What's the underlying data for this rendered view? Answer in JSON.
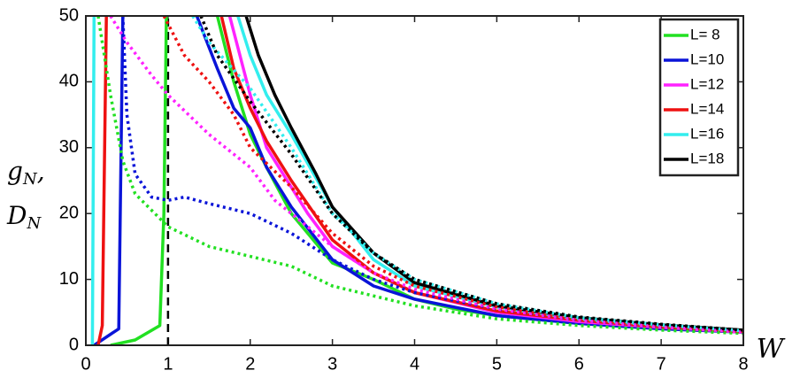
{
  "chart_data": {
    "type": "line",
    "ylabel": [
      [
        "g",
        "N",
        ","
      ],
      [
        "D",
        "N"
      ]
    ],
    "xlabel": "W",
    "xlim": [
      0,
      8
    ],
    "xticks": [
      0,
      1,
      2,
      3,
      4,
      5,
      6,
      7,
      8
    ],
    "ylim": [
      0,
      50
    ],
    "yticks": [
      0,
      10,
      20,
      30,
      40,
      50
    ],
    "legend": "upper right",
    "reference_x": 1,
    "series": [
      {
        "name": "L= 8",
        "color": "#22e022",
        "style": "solid",
        "x": [
          0.3,
          0.6,
          0.9,
          0.95,
          0.98,
          1.3,
          1.6,
          1.8,
          2,
          2.2,
          2.5,
          3,
          3.5,
          4,
          4.5,
          5,
          6,
          7,
          8
        ],
        "values": [
          0,
          0.8,
          3,
          20,
          50,
          null,
          50,
          40,
          32,
          27,
          20,
          12.5,
          10,
          7,
          5.5,
          4.5,
          3.3,
          2.5,
          2
        ]
      },
      {
        "name": "L=10",
        "color": "#0a14d8",
        "style": "solid",
        "x": [
          0.1,
          0.4,
          0.45,
          0.9,
          1.35,
          1.6,
          1.8,
          2,
          2.2,
          2.5,
          3,
          3.5,
          4,
          5,
          6,
          7,
          8
        ],
        "values": [
          0,
          2.5,
          50,
          null,
          50,
          42,
          36,
          33,
          27,
          21,
          13,
          9,
          7,
          4.5,
          3.3,
          2.5,
          2
        ]
      },
      {
        "name": "L=12",
        "color": "#ff22ff",
        "style": "solid",
        "x": [
          1.75,
          2,
          2.2,
          2.5,
          2.7,
          3,
          3.5,
          4,
          5,
          6,
          7,
          8
        ],
        "values": [
          50,
          38,
          30,
          24,
          20,
          15,
          11,
          8,
          5,
          3.6,
          2.7,
          2
        ]
      },
      {
        "name": "L=14",
        "color": "#ee1111",
        "style": "solid",
        "x": [
          0.15,
          0.2,
          0.25,
          1,
          1.65,
          1.8,
          2,
          2.2,
          2.5,
          3,
          3.5,
          4,
          5,
          6,
          7,
          8
        ],
        "values": [
          0,
          3,
          50,
          null,
          50,
          42,
          36,
          31,
          25,
          16,
          11,
          8,
          5.2,
          3.8,
          2.8,
          2
        ]
      },
      {
        "name": "L=16",
        "color": "#33eeee",
        "style": "solid",
        "x": [
          0.08,
          0.1,
          1,
          1.85,
          2,
          2.2,
          2.5,
          3,
          3.5,
          4,
          5,
          6,
          7,
          8
        ],
        "values": [
          0,
          50,
          null,
          50,
          44,
          38,
          32,
          21,
          13,
          9,
          5.8,
          4,
          3,
          2.2
        ]
      },
      {
        "name": "L=18",
        "color": "#000000",
        "style": "solid",
        "x": [
          1.95,
          2.1,
          2.3,
          2.5,
          2.8,
          3,
          3.5,
          4,
          5,
          6,
          7,
          8
        ],
        "values": [
          50,
          44,
          38,
          33,
          26,
          21,
          14,
          9.5,
          6,
          4.2,
          3.1,
          2.3
        ]
      },
      {
        "color": "#22e022",
        "style": "dotted",
        "x": [
          0.15,
          0.3,
          0.45,
          0.6,
          1,
          1.5,
          2,
          2.5,
          3,
          4,
          5,
          6,
          7,
          8
        ],
        "values": [
          50,
          38,
          28,
          23,
          18,
          15,
          13.5,
          12,
          9,
          6,
          4,
          3,
          2.3,
          1.8
        ]
      },
      {
        "color": "#0a14d8",
        "style": "dotted",
        "x": [
          0.45,
          0.5,
          0.6,
          0.8,
          1,
          1.2,
          1.5,
          2,
          2.5,
          3,
          3.5,
          4,
          5,
          6,
          7,
          8
        ],
        "values": [
          50,
          35,
          26,
          22.5,
          22,
          22.5,
          21.5,
          20,
          17,
          13,
          10,
          8,
          5.5,
          3.8,
          2.8,
          2
        ]
      },
      {
        "color": "#ff22ff",
        "style": "dotted",
        "x": [
          0.3,
          0.5,
          0.8,
          1,
          1.5,
          2,
          2.3,
          2.5,
          3,
          3.5,
          4,
          5,
          6,
          7,
          8
        ],
        "values": [
          50,
          46,
          41,
          38,
          32,
          27,
          22,
          20,
          15,
          11,
          8.5,
          5.5,
          3.8,
          2.8,
          2
        ]
      },
      {
        "color": "#ee1111",
        "style": "dotted",
        "x": [
          0.95,
          1.2,
          1.5,
          1.8,
          2,
          2.5,
          3,
          3.5,
          4,
          5,
          6,
          7,
          8
        ],
        "values": [
          50,
          44,
          40,
          35,
          30,
          24,
          17,
          12,
          9,
          5.8,
          4,
          3,
          2.1
        ]
      },
      {
        "color": "#33eeee",
        "style": "dotted",
        "x": [
          1.3,
          1.5,
          2,
          2.5,
          3,
          3.5,
          4,
          5,
          6,
          7,
          8
        ],
        "values": [
          50,
          46,
          39,
          30,
          20,
          14,
          10,
          6.3,
          4.2,
          3.1,
          2.2
        ]
      },
      {
        "color": "#000000",
        "style": "dotted",
        "x": [
          1.4,
          1.6,
          2,
          2.5,
          3,
          3.5,
          4,
          5,
          6,
          7,
          8
        ],
        "values": [
          50,
          44,
          37,
          29,
          20,
          14,
          10,
          6.3,
          4.3,
          3.2,
          2.3
        ]
      }
    ]
  }
}
